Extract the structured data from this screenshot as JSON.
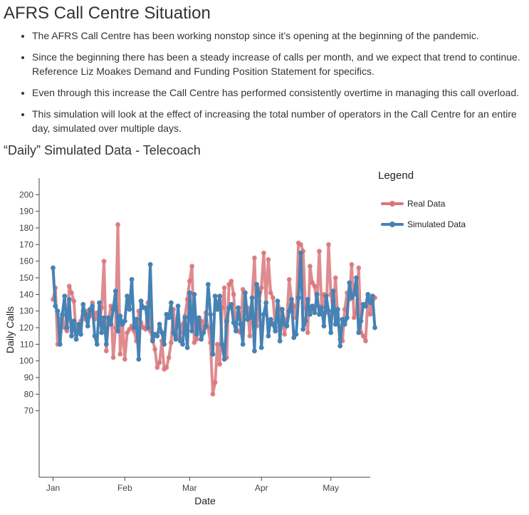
{
  "page": {
    "title": "AFRS Call Centre Situation",
    "bullets": [
      "The AFRS Call Centre has been working nonstop since it’s opening at the beginning of the pandemic.",
      "Since the beginning there has been a steady increase of calls per month, and we expect that trend to continue. Reference Liz Moakes Demand and Funding Position Statement for specifics.",
      "Even through this increase the Call Centre has performed consistently overtime in managing this call overload.",
      "This simulation will look at the effect of increasing the total number of operators in the Call Centre for an entire day, simulated over multiple days."
    ],
    "chart_heading": "“Daily” Simulated Data - Telecoach"
  },
  "chart_data": {
    "type": "line",
    "xlabel": "Date",
    "ylabel": "Daily Calls",
    "x_ticks": [
      "Jan",
      "Feb",
      "Mar",
      "Apr",
      "May"
    ],
    "x_tick_days": [
      0,
      31,
      59,
      90,
      120
    ],
    "x_range_days": [
      -6,
      137
    ],
    "y_range": [
      30,
      210
    ],
    "y_ticks": [
      70,
      80,
      90,
      100,
      110,
      120,
      130,
      140,
      150,
      160,
      170,
      180,
      190,
      200
    ],
    "grid": false,
    "legend": {
      "title": "Legend",
      "position": "right"
    },
    "x_start": "Jan 1",
    "series": [
      {
        "name": "Real Data",
        "color": "#d9777b",
        "values": [
          137,
          144,
          110,
          125,
          127,
          120,
          118,
          145,
          141,
          136,
          116,
          118,
          124,
          130,
          125,
          130,
          127,
          135,
          125,
          129,
          122,
          132,
          160,
          106,
          125,
          133,
          102,
          120,
          182,
          104,
          122,
          101,
          117,
          119,
          121,
          118,
          112,
          130,
          123,
          120,
          119,
          135,
          118,
          113,
          107,
          96,
          99,
          112,
          95,
          96,
          102,
          111,
          131,
          116,
          114,
          117,
          122,
          127,
          137,
          148,
          157,
          111,
          113,
          122,
          124,
          119,
          129,
          120,
          111,
          80,
          87,
          110,
          98,
          132,
          144,
          102,
          146,
          148,
          140,
          120,
          118,
          117,
          143,
          133,
          132,
          115,
          138,
          162,
          121,
          136,
          144,
          165,
          135,
          161,
          141,
          138,
          120,
          136,
          131,
          127,
          116,
          125,
          149,
          137,
          133,
          126,
          171,
          170,
          166,
          132,
          117,
          157,
          147,
          145,
          134,
          166,
          133,
          140,
          129,
          170,
          140,
          130,
          150,
          125,
          113,
          112,
          131,
          141,
          137,
          158,
          126,
          129,
          156,
          117,
          115,
          112,
          138,
          128,
          136,
          138
        ]
      },
      {
        "name": "Simulated Data",
        "color": "#4682b4",
        "values": [
          156,
          133,
          130,
          110,
          128,
          139,
          120,
          137,
          115,
          124,
          113,
          122,
          116,
          134,
          128,
          121,
          131,
          133,
          115,
          110,
          135,
          117,
          126,
          110,
          126,
          122,
          131,
          142,
          118,
          127,
          122,
          124,
          139,
          131,
          149,
          120,
          125,
          101,
          136,
          132,
          132,
          120,
          158,
          112,
          116,
          115,
          122,
          117,
          110,
          128,
          126,
          135,
          117,
          113,
          133,
          112,
          110,
          126,
          108,
          141,
          118,
          140,
          116,
          126,
          113,
          117,
          121,
          146,
          128,
          104,
          139,
          131,
          139,
          110,
          101,
          124,
          132,
          134,
          123,
          118,
          132,
          122,
          110,
          141,
          125,
          126,
          138,
          106,
          146,
          141,
          108,
          128,
          135,
          115,
          125,
          122,
          118,
          136,
          112,
          131,
          122,
          121,
          130,
          137,
          114,
          116,
          138,
          165,
          119,
          124,
          137,
          128,
          133,
          129,
          140,
          128,
          132,
          121,
          139,
          130,
          117,
          142,
          122,
          131,
          109,
          125,
          122,
          126,
          147,
          138,
          140,
          150,
          117,
          124,
          134,
          133,
          140,
          135,
          139,
          120
        ]
      }
    ]
  }
}
